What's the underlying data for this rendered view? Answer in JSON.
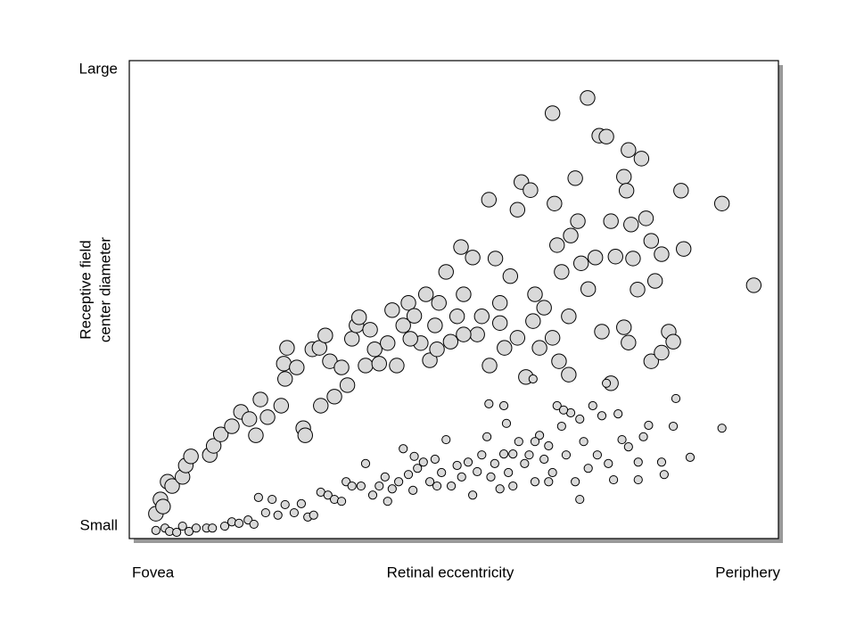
{
  "chart_data": {
    "type": "scatter",
    "xlabel": "Retinal eccentricity",
    "ylabel": [
      "Receptive field",
      "center diameter"
    ],
    "xlim": [
      0,
      100
    ],
    "ylim": [
      0,
      100
    ],
    "xticks": [
      {
        "value": 0,
        "label": "Fovea"
      },
      {
        "value": 100,
        "label": "Periphery"
      }
    ],
    "yticks": [
      {
        "value": 0,
        "label": "Small"
      },
      {
        "value": 100,
        "label": "Large"
      }
    ],
    "grid": false,
    "series": [
      {
        "color": "#d9d9d9",
        "x": [
          4.1,
          4.8,
          5.2,
          5.9,
          6.6,
          8.2,
          8.7,
          9.5,
          12.4,
          13.0,
          14.1,
          15.8,
          17.2,
          18.5,
          19.5,
          20.2,
          21.3,
          23.4,
          24.0,
          23.8,
          24.3,
          25.8,
          26.8,
          27.1,
          28.2,
          29.3,
          29.5,
          30.2,
          30.9,
          31.6,
          32.7,
          33.6,
          34.3,
          35.0,
          35.4,
          36.4,
          37.1,
          37.8,
          38.5,
          39.8,
          40.5,
          41.2,
          42.2,
          43.0,
          43.9,
          44.9,
          45.7,
          46.3,
          47.1,
          47.7,
          48.8,
          49.5,
          50.5,
          51.1,
          51.5,
          52.9,
          53.6,
          54.3,
          55.4,
          56.4,
          57.1,
          57.8,
          58.7,
          59.8,
          60.4,
          61.8,
          62.5,
          63.2,
          63.9,
          65.2,
          65.5,
          65.9,
          66.6,
          67.7,
          68.7,
          69.1,
          69.6,
          70.6,
          70.7,
          71.8,
          72.4,
          72.8,
          73.5,
          74.2,
          74.9,
          76.2,
          76.6,
          76.9,
          77.3,
          77.6,
          78.3,
          78.9,
          79.6,
          80.4,
          81.0,
          82.0,
          83.1,
          83.8,
          85.0,
          85.4,
          91.3,
          96.2,
          80.4,
          82.0,
          55.5,
          61.1,
          66.2,
          67.7,
          62.2,
          59.8,
          65.2,
          47.4,
          51.5,
          43.3,
          57.1,
          68.0,
          76.2,
          76.9,
          74.2
        ],
        "values": [
          5.2,
          8.2,
          6.7,
          11.9,
          11.0,
          12.9,
          15.3,
          17.2,
          17.5,
          19.4,
          21.8,
          23.5,
          26.5,
          25.0,
          21.6,
          29.1,
          25.4,
          27.8,
          33.4,
          36.6,
          39.9,
          35.8,
          23.1,
          21.6,
          39.6,
          39.9,
          27.8,
          42.5,
          37.1,
          29.7,
          35.8,
          32.1,
          41.8,
          44.6,
          46.3,
          36.2,
          43.7,
          39.6,
          36.6,
          40.9,
          47.8,
          36.2,
          44.6,
          49.3,
          46.6,
          40.9,
          51.1,
          37.3,
          44.6,
          49.3,
          55.8,
          41.2,
          46.5,
          61.0,
          51.1,
          58.8,
          42.7,
          46.5,
          70.9,
          58.6,
          49.3,
          39.9,
          54.9,
          68.8,
          74.6,
          72.9,
          51.1,
          39.9,
          48.3,
          89.0,
          70.1,
          61.4,
          55.8,
          46.5,
          75.4,
          66.4,
          57.6,
          92.2,
          52.2,
          58.8,
          84.3,
          43.3,
          84.1,
          66.4,
          59.0,
          75.7,
          72.8,
          81.3,
          65.7,
          58.6,
          52.1,
          79.5,
          67.0,
          62.3,
          53.9,
          59.5,
          43.3,
          41.2,
          72.8,
          60.6,
          70.1,
          53.0,
          37.1,
          38.9,
          36.2,
          33.8,
          37.1,
          34.3,
          45.5,
          42.0,
          42.0,
          39.6,
          42.7,
          41.8,
          45.1,
          63.4,
          44.2,
          41.0,
          32.5
        ]
      },
      {
        "color": "#d9d9d9",
        "x": [
          4.1,
          5.5,
          6.2,
          7.3,
          8.2,
          9.2,
          10.3,
          11.9,
          12.8,
          14.7,
          15.8,
          16.9,
          18.3,
          19.2,
          19.9,
          21.0,
          22.0,
          22.9,
          24.0,
          25.4,
          26.5,
          27.5,
          28.4,
          29.5,
          30.6,
          31.6,
          32.7,
          33.4,
          34.3,
          35.7,
          36.4,
          37.5,
          38.5,
          39.4,
          39.8,
          40.5,
          41.5,
          42.2,
          43.0,
          43.7,
          44.4,
          45.3,
          46.3,
          47.1,
          48.1,
          48.8,
          49.6,
          50.5,
          51.2,
          52.2,
          52.9,
          53.6,
          54.3,
          55.1,
          55.7,
          56.3,
          57.1,
          57.7,
          58.4,
          59.1,
          60.0,
          60.9,
          61.6,
          62.5,
          63.2,
          63.9,
          64.6,
          65.2,
          65.9,
          66.6,
          67.3,
          68.0,
          68.7,
          69.4,
          70.0,
          70.7,
          71.4,
          72.1,
          72.8,
          73.8,
          74.6,
          75.3,
          75.9,
          76.9,
          78.4,
          78.4,
          79.2,
          80.0,
          82.0,
          82.4,
          83.8,
          84.2,
          86.4,
          91.3,
          55.4,
          57.7,
          58.1,
          62.2,
          73.5,
          66.9,
          69.4,
          64.6,
          59.1,
          62.5,
          47.4,
          43.9
        ],
        "values": [
          1.7,
          2.2,
          1.5,
          1.3,
          2.6,
          1.5,
          2.2,
          2.2,
          2.2,
          2.6,
          3.5,
          3.2,
          3.9,
          3.0,
          8.6,
          5.4,
          8.2,
          4.9,
          7.1,
          5.4,
          7.3,
          4.5,
          4.9,
          9.7,
          9.1,
          8.2,
          7.8,
          11.9,
          11.0,
          11.0,
          15.7,
          9.1,
          11.0,
          12.9,
          7.8,
          10.4,
          11.9,
          18.8,
          13.4,
          10.1,
          14.7,
          16.0,
          11.9,
          16.6,
          13.8,
          20.7,
          11.0,
          15.3,
          12.9,
          16.0,
          9.1,
          14.0,
          17.5,
          21.3,
          12.9,
          15.7,
          10.4,
          17.7,
          13.8,
          11.0,
          20.3,
          15.7,
          17.5,
          11.9,
          21.6,
          16.6,
          19.4,
          13.8,
          27.8,
          23.5,
          17.5,
          26.3,
          11.9,
          8.2,
          20.3,
          14.7,
          27.8,
          17.5,
          25.7,
          15.7,
          12.3,
          26.1,
          20.7,
          19.2,
          16.0,
          12.3,
          21.3,
          23.7,
          16.0,
          13.4,
          23.5,
          29.3,
          17.0,
          23.1,
          28.2,
          27.8,
          24.1,
          33.4,
          32.5,
          26.9,
          25.0,
          11.9,
          17.7,
          20.3,
          11.0,
          17.2
        ]
      }
    ]
  }
}
